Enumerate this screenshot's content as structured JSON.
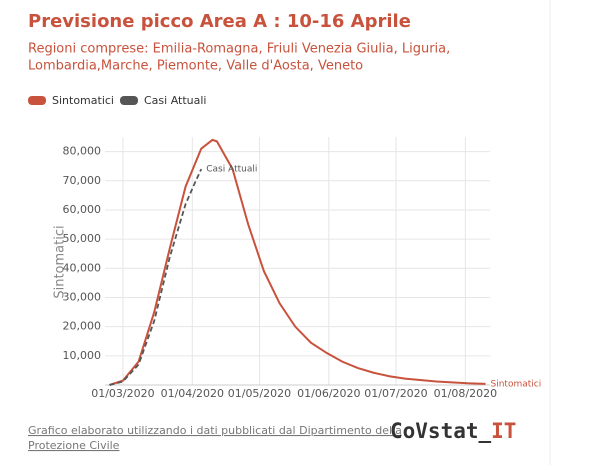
{
  "chart_data": {
    "type": "line",
    "title": "Previsione picco Area A : 10-16 Aprile",
    "subtitle": [
      "Regioni comprese: Emilia-Romagna, Friuli Venezia Giulia, Liguria,",
      "Lombardia,Marche, Piemonte, Valle d'Aosta, Veneto"
    ],
    "y_label": "Sintomatici",
    "series": [
      {
        "name": "Sintomatici",
        "color": "#c8523c",
        "dashed": false,
        "x": [
          "24/02/2020",
          "01/03/2020",
          "08/03/2020",
          "15/03/2020",
          "22/03/2020",
          "29/03/2020",
          "05/04/2020",
          "10/04/2020",
          "12/04/2020",
          "19/04/2020",
          "26/04/2020",
          "03/05/2020",
          "10/05/2020",
          "17/05/2020",
          "24/05/2020",
          "31/05/2020",
          "07/06/2020",
          "14/06/2020",
          "21/06/2020",
          "28/06/2020",
          "05/07/2020",
          "19/07/2020",
          "02/08/2020",
          "10/08/2020"
        ],
        "values": [
          0,
          1500,
          8000,
          25000,
          47000,
          68000,
          81000,
          84000,
          83500,
          74000,
          55000,
          39000,
          28000,
          20000,
          14500,
          11000,
          8000,
          5800,
          4200,
          3000,
          2200,
          1200,
          600,
          400
        ]
      },
      {
        "name": "Casi Attuali",
        "color": "#555555",
        "dashed": true,
        "x": [
          "24/02/2020",
          "01/03/2020",
          "08/03/2020",
          "15/03/2020",
          "22/03/2020",
          "29/03/2020",
          "02/04/2020",
          "05/04/2020"
        ],
        "values": [
          0,
          1200,
          7000,
          22000,
          44000,
          62000,
          69000,
          74000
        ]
      }
    ],
    "xlim": [
      "22/02/2020",
      "12/08/2020"
    ],
    "xticks": [
      "01/03/2020",
      "01/04/2020",
      "01/05/2020",
      "01/06/2020",
      "01/07/2020",
      "01/08/2020"
    ],
    "ylim": [
      0,
      85000
    ],
    "yticks": [
      {
        "value": 10000,
        "label": "10,000"
      },
      {
        "value": 20000,
        "label": "20,000"
      },
      {
        "value": 30000,
        "label": "30,000"
      },
      {
        "value": 40000,
        "label": "40,000"
      },
      {
        "value": 50000,
        "label": "50,000"
      },
      {
        "value": 60000,
        "label": "60,000"
      },
      {
        "value": 70000,
        "label": "70,000"
      },
      {
        "value": 80000,
        "label": "80,000"
      }
    ],
    "grid": true,
    "legend": "top-left"
  },
  "footer": {
    "source": [
      "Grafico elaborato utilizzando i dati pubblicati dal Dipartimento della",
      "Protezione Civile"
    ],
    "logo": [
      "CoVstat_",
      "IT"
    ]
  }
}
